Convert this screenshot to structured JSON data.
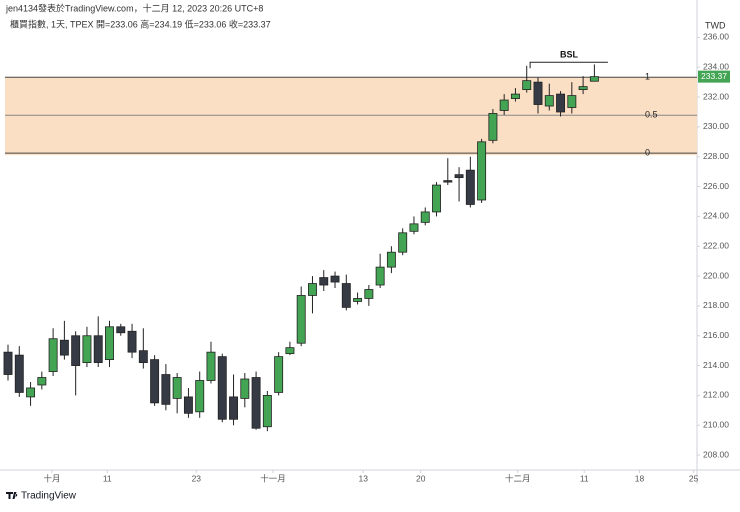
{
  "chart_data": {
    "type": "candlestick",
    "title": "jen4134發表於TradingView.com，十二月 12, 2023 20:26 UTC+8",
    "subtitle": "櫃買指數, 1天, TPEX  開=233.06 高=234.19 低=233.06 收=233.37",
    "currency": "TWD",
    "brand": "TradingView",
    "up_color": "#43a553",
    "down_color": "#363a45",
    "open": [
      214.9,
      214.7,
      211.9,
      212.7,
      213.6,
      215.7,
      216.0,
      214.2,
      216.0,
      214.4,
      216.6,
      216.3,
      215.0,
      214.4,
      213.4,
      211.8,
      211.9,
      210.9,
      213.0,
      214.6,
      211.9,
      211.8,
      213.2,
      209.9,
      212.2,
      214.8,
      215.5,
      218.7,
      219.9,
      220.0,
      219.5,
      218.3,
      218.5,
      219.4,
      220.6,
      221.6,
      223.0,
      223.6,
      224.3,
      226.4,
      226.8,
      227.1,
      225.1,
      229.1,
      231.1,
      231.9,
      232.5,
      233.0,
      231.4,
      232.2,
      231.3,
      232.5,
      233.06
    ],
    "high": [
      215.4,
      215.3,
      212.9,
      213.6,
      216.5,
      217.0,
      216.3,
      216.6,
      217.3,
      217.0,
      216.8,
      216.8,
      216.5,
      214.7,
      214.1,
      213.5,
      212.5,
      213.6,
      215.6,
      214.8,
      213.4,
      213.5,
      213.6,
      212.3,
      214.9,
      215.6,
      219.3,
      220.0,
      220.4,
      220.3,
      220.1,
      218.9,
      219.4,
      221.5,
      222.0,
      223.2,
      224.0,
      224.6,
      226.3,
      227.9,
      227.3,
      228.0,
      229.2,
      231.2,
      232.2,
      232.6,
      234.1,
      233.3,
      232.9,
      232.4,
      233.0,
      233.4,
      234.19
    ],
    "low": [
      213.0,
      211.9,
      211.3,
      212.4,
      213.3,
      214.4,
      212.0,
      213.9,
      213.9,
      213.9,
      216.0,
      214.5,
      213.8,
      211.3,
      211.0,
      210.8,
      210.5,
      210.5,
      212.8,
      210.2,
      210.0,
      211.2,
      209.7,
      209.6,
      212.0,
      214.7,
      215.3,
      217.5,
      219.0,
      219.2,
      217.7,
      218.1,
      218.0,
      219.2,
      220.2,
      221.4,
      222.8,
      223.4,
      224.0,
      226.1,
      225.0,
      224.6,
      224.9,
      228.9,
      230.8,
      231.7,
      232.3,
      230.9,
      231.1,
      230.7,
      230.9,
      232.2,
      233.06
    ],
    "close": [
      213.4,
      212.2,
      212.5,
      213.2,
      215.8,
      214.7,
      214.0,
      216.0,
      214.2,
      216.6,
      216.2,
      214.9,
      214.2,
      211.5,
      211.4,
      213.2,
      210.8,
      213.0,
      214.9,
      210.4,
      210.4,
      213.1,
      209.8,
      212.0,
      214.6,
      215.2,
      218.7,
      219.5,
      219.4,
      219.6,
      217.9,
      218.5,
      219.1,
      220.6,
      221.6,
      222.9,
      223.5,
      224.3,
      226.1,
      226.3,
      226.6,
      224.8,
      229.0,
      230.9,
      231.8,
      232.2,
      233.1,
      231.5,
      232.1,
      231.0,
      232.1,
      232.7,
      233.37
    ],
    "xlim": [
      -0.71,
      61.1
    ],
    "xticks": [
      {
        "value": 3.9,
        "label": "十月"
      },
      {
        "value": 8.8,
        "label": "11"
      },
      {
        "value": 16.7,
        "label": "23"
      },
      {
        "value": 23.5,
        "label": "十一月"
      },
      {
        "value": 31.5,
        "label": "13"
      },
      {
        "value": 36.6,
        "label": "20"
      },
      {
        "value": 45.2,
        "label": "十二月"
      },
      {
        "value": 51.1,
        "label": "11"
      },
      {
        "value": 56.0,
        "label": "18"
      },
      {
        "value": 60.8,
        "label": "25"
      }
    ],
    "ylim": [
      207.0,
      237.3
    ],
    "yticks": [
      {
        "value": 208,
        "label": "208.00"
      },
      {
        "value": 210,
        "label": "210.00"
      },
      {
        "value": 212,
        "label": "212.00"
      },
      {
        "value": 214,
        "label": "214.00"
      },
      {
        "value": 216,
        "label": "216.00"
      },
      {
        "value": 218,
        "label": "218.00"
      },
      {
        "value": 220,
        "label": "220.00"
      },
      {
        "value": 222,
        "label": "222.00"
      },
      {
        "value": 224,
        "label": "224.00"
      },
      {
        "value": 226,
        "label": "226.00"
      },
      {
        "value": 228,
        "label": "228.00"
      },
      {
        "value": 230,
        "label": "230.00"
      },
      {
        "value": 232,
        "label": "232.00"
      },
      {
        "value": 234,
        "label": "234.00"
      },
      {
        "value": 236,
        "label": "236.00"
      }
    ],
    "grid": false,
    "fib": {
      "levels": [
        1,
        0.5,
        0
      ],
      "prices": [
        233.33,
        230.78,
        228.24
      ],
      "color": "#fbdfc4"
    },
    "bsl": {
      "label": "BSL",
      "price": 234.33,
      "start": 46.3,
      "end": 53.2
    }
  }
}
